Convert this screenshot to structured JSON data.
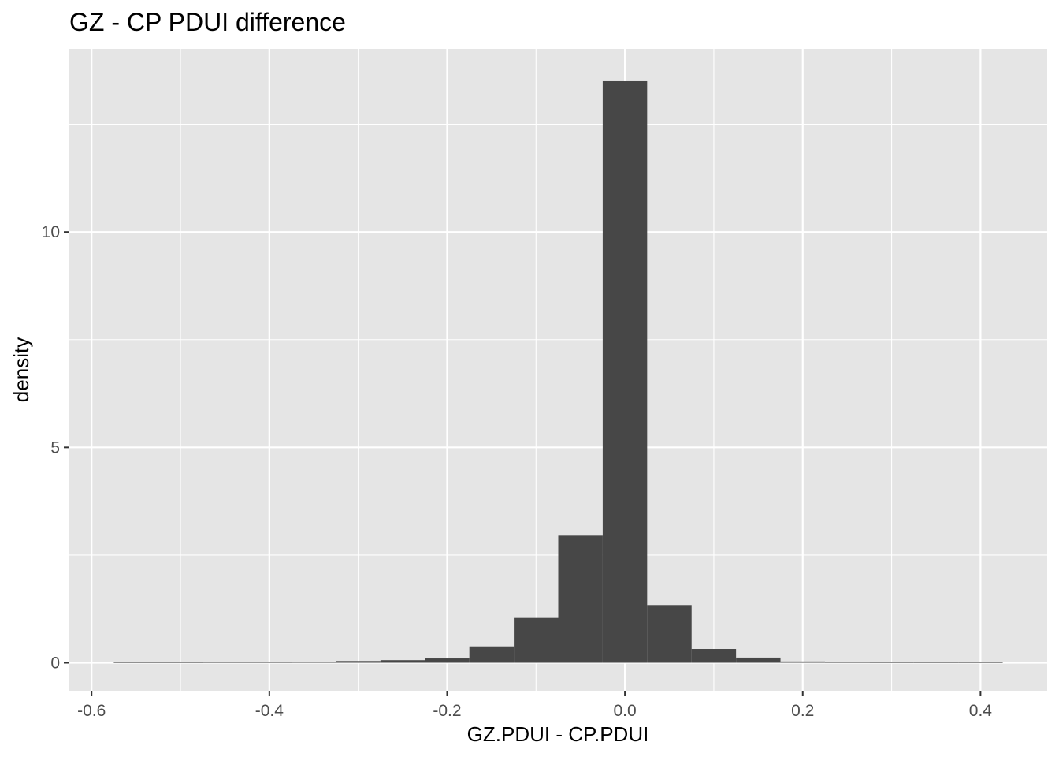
{
  "chart_data": {
    "type": "bar",
    "title": "GZ - CP PDUI difference",
    "xlabel": "GZ.PDUI - CP.PDUI",
    "ylabel": "density",
    "bin_width": 0.05,
    "xlim": [
      -0.625,
      0.475
    ],
    "ylim": [
      -0.65,
      14.25
    ],
    "x_ticks": [
      -0.6,
      -0.4,
      -0.2,
      0.0,
      0.2,
      0.4
    ],
    "x_tick_labels": [
      "-0.6",
      "-0.4",
      "-0.2",
      "0.0",
      "0.2",
      "0.4"
    ],
    "y_ticks": [
      0,
      5,
      10
    ],
    "y_tick_labels": [
      "0",
      "5",
      "10"
    ],
    "bin_centers": [
      -0.55,
      -0.5,
      -0.45,
      -0.4,
      -0.35,
      -0.3,
      -0.25,
      -0.2,
      -0.15,
      -0.1,
      -0.05,
      0.0,
      0.05,
      0.1,
      0.15,
      0.2,
      0.25,
      0.3,
      0.35,
      0.4
    ],
    "values": [
      0.005,
      0.005,
      0.01,
      0.01,
      0.02,
      0.04,
      0.06,
      0.1,
      0.38,
      1.04,
      2.95,
      13.5,
      1.34,
      0.32,
      0.12,
      0.03,
      0.01,
      0.005,
      0.005,
      0.005
    ],
    "grid": true,
    "colors": {
      "panel": "#e5e5e5",
      "grid": "#ffffff",
      "bar": "#474747",
      "axis_text": "#4d4d4d",
      "tick": "#333333"
    }
  }
}
